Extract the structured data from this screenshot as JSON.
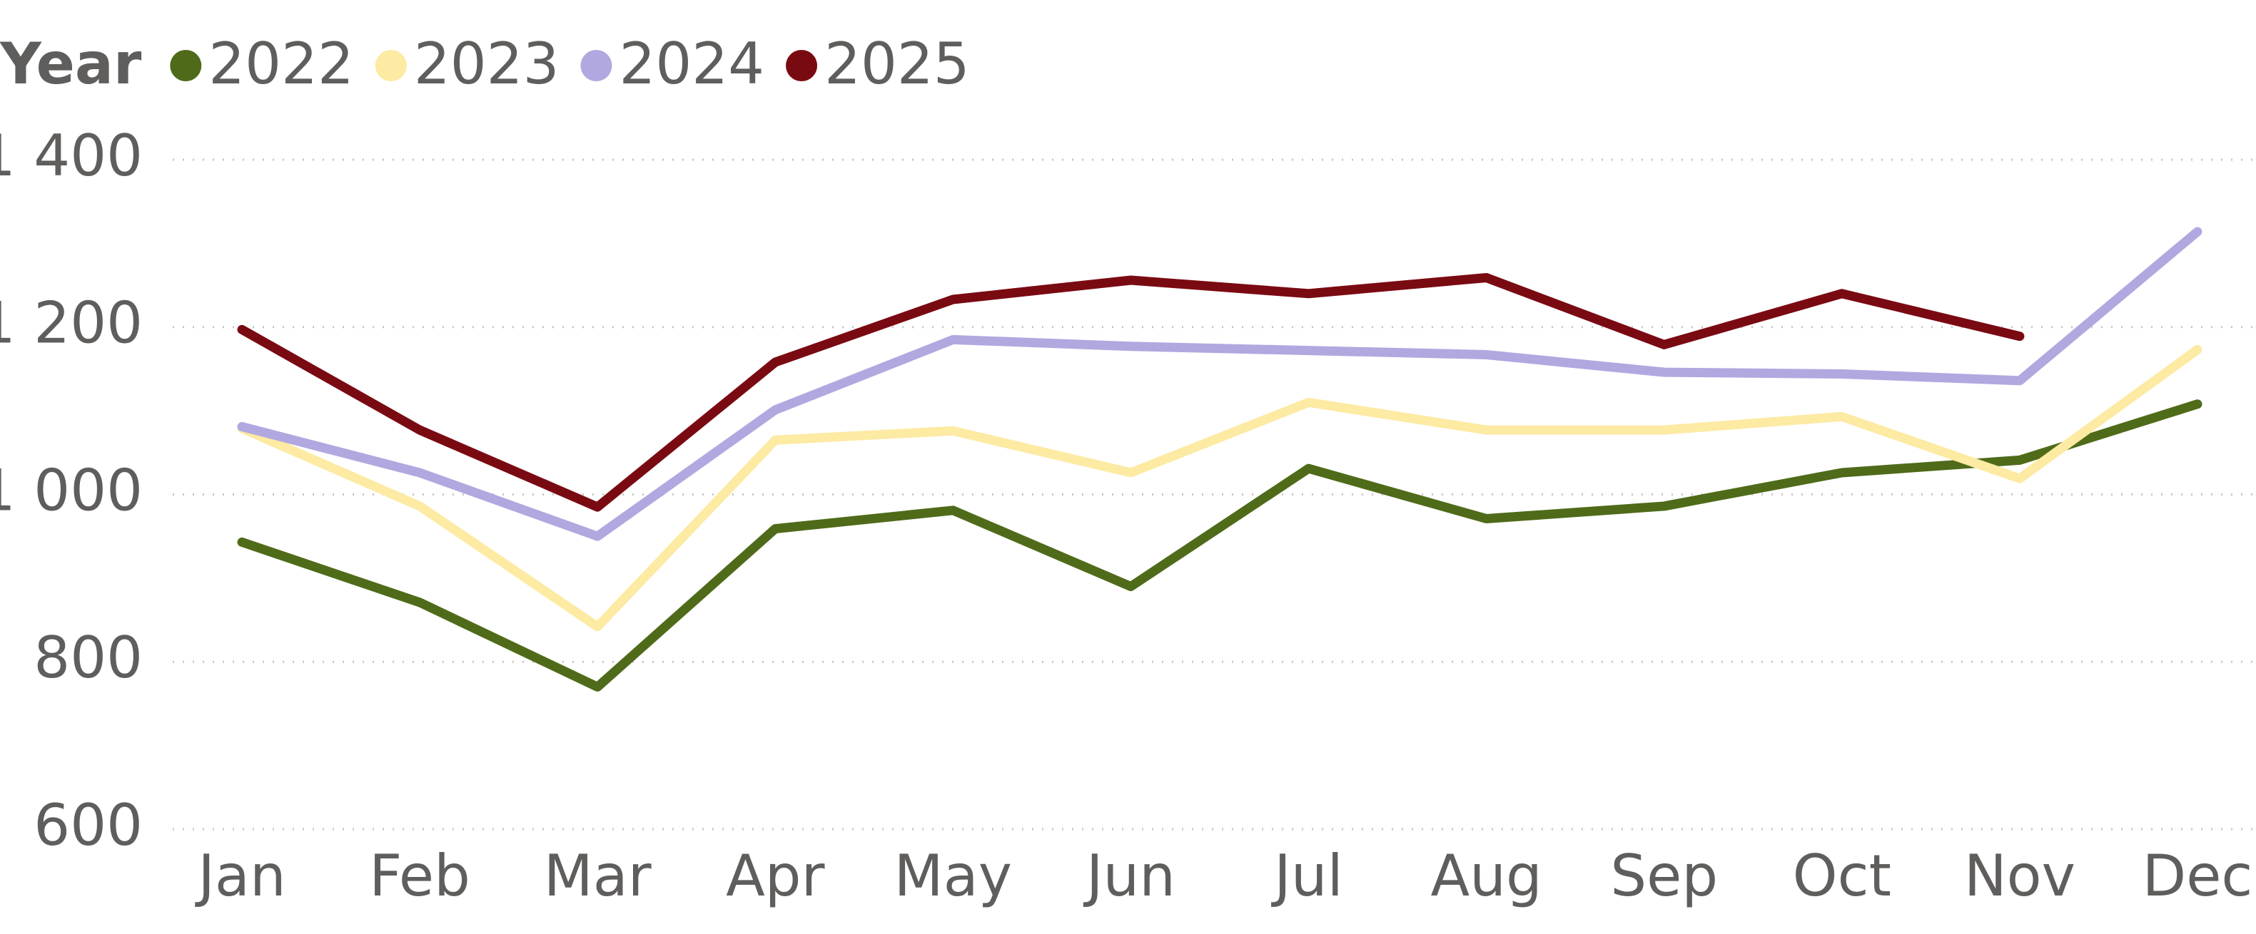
{
  "chart_data": {
    "type": "line",
    "legend_title": "Year",
    "categories": [
      "Jan",
      "Feb",
      "Mar",
      "Apr",
      "May",
      "Jun",
      "Jul",
      "Aug",
      "Sep",
      "Oct",
      "Nov",
      "Dec"
    ],
    "series": [
      {
        "name": "2022",
        "color": "#4f6b1a",
        "values": [
          943,
          871,
          770,
          959,
          981,
          890,
          1031,
          971,
          986,
          1026,
          1041,
          1108
        ]
      },
      {
        "name": "2023",
        "color": "#fdeaa3",
        "values": [
          1079,
          986,
          842,
          1065,
          1076,
          1026,
          1110,
          1077,
          1077,
          1093,
          1019,
          1173
        ]
      },
      {
        "name": "2024",
        "color": "#b1a8e0",
        "values": [
          1081,
          1026,
          950,
          1101,
          1185,
          1177,
          1172,
          1167,
          1146,
          1144,
          1136,
          1314
        ]
      },
      {
        "name": "2025",
        "color": "#7a0a12",
        "values": [
          1197,
          1077,
          985,
          1158,
          1233,
          1256,
          1240,
          1259,
          1179,
          1240,
          1189,
          null
        ]
      }
    ],
    "ylim": [
      600,
      1400
    ],
    "yticks": [
      {
        "value": 600,
        "label": "600"
      },
      {
        "value": 800,
        "label": "800"
      },
      {
        "value": 1000,
        "label": "1 000"
      },
      {
        "value": 1200,
        "label": "1 200"
      },
      {
        "value": 1400,
        "label": "1 400"
      }
    ],
    "grid": true,
    "legend": "top-left"
  }
}
